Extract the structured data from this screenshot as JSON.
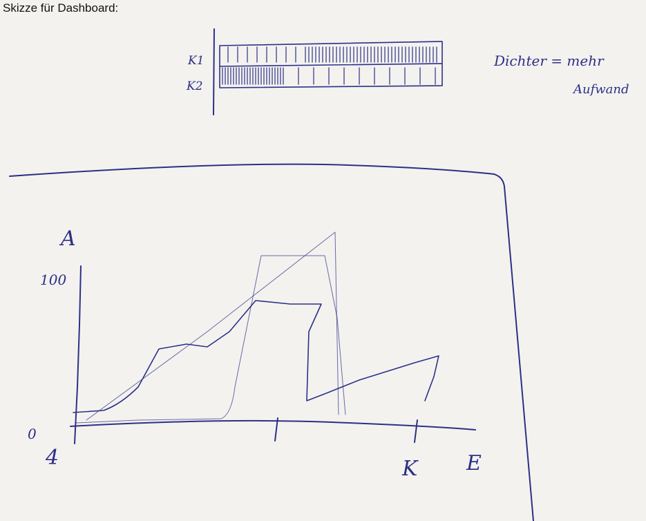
{
  "header": {
    "title": "Skizze für Dashboard:"
  },
  "timeline": {
    "rows": [
      "K1",
      "K2"
    ]
  },
  "note": {
    "lines": [
      "Dichter = mehr",
      "Aufwand"
    ]
  },
  "sketch_chart": {
    "y_top_label": "A",
    "y_max_label": "100",
    "y_origin_label": "0",
    "x_origin_label": "4",
    "x_labels": [
      "K",
      "E"
    ]
  }
}
